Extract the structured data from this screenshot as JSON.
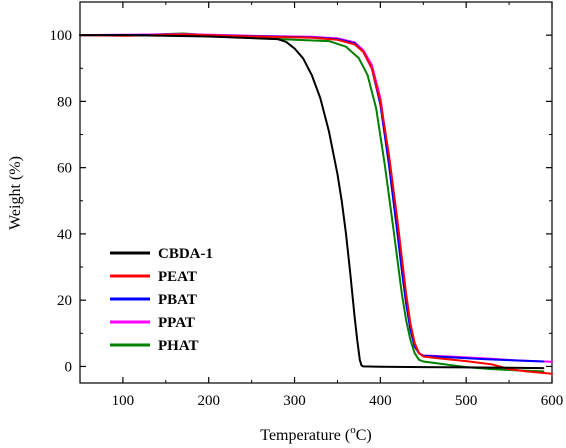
{
  "chart_data": {
    "type": "line",
    "title": "",
    "xlabel": "Temperature (",
    "xlabel_unit_sup": "o",
    "xlabel_unit": "C)",
    "ylabel": "Weight (%)",
    "xlim": [
      50,
      600
    ],
    "ylim": [
      -5,
      110
    ],
    "x_ticks": [
      100,
      200,
      300,
      400,
      500,
      600
    ],
    "y_ticks": [
      0,
      20,
      40,
      60,
      80,
      100
    ],
    "x_tick_labels": [
      "100",
      "200",
      "300",
      "400",
      "500",
      "600"
    ],
    "y_tick_labels": [
      "0",
      "20",
      "40",
      "60",
      "80",
      "100"
    ],
    "grid": false,
    "legend_position": "bottom-left",
    "series": [
      {
        "name": "CBDA-1",
        "color": "#000000",
        "x": [
          50,
          100,
          200,
          280,
          290,
          300,
          310,
          320,
          330,
          340,
          350,
          355,
          360,
          365,
          370,
          373,
          376,
          378,
          380,
          400,
          450,
          500,
          550,
          590
        ],
        "y": [
          100,
          100,
          99.6,
          98.8,
          98,
          96,
          93,
          88,
          81,
          71,
          58,
          50,
          40,
          28,
          15,
          8,
          2,
          0.3,
          0,
          -0.1,
          -0.2,
          -0.3,
          -0.4,
          -0.5
        ]
      },
      {
        "name": "PEAT",
        "color": "#ff0000",
        "x": [
          50,
          100,
          170,
          250,
          320,
          350,
          370,
          380,
          390,
          400,
          410,
          420,
          425,
          430,
          435,
          440,
          445,
          450,
          470,
          500,
          530,
          550,
          570,
          600
        ],
        "y": [
          100,
          99.8,
          100.2,
          99.6,
          99.2,
          98.6,
          97.2,
          95,
          90,
          80,
          64,
          44,
          33,
          22,
          13,
          7,
          4,
          3,
          2.4,
          1.6,
          0.6,
          -0.8,
          -1.5,
          -2.2
        ]
      },
      {
        "name": "PBAT",
        "color": "#0000ff",
        "x": [
          50,
          100,
          170,
          250,
          320,
          350,
          370,
          380,
          390,
          400,
          410,
          420,
          425,
          430,
          435,
          440,
          445,
          450,
          480,
          520,
          560,
          590
        ],
        "y": [
          100,
          100,
          100.1,
          99.7,
          99.3,
          98.8,
          97.5,
          95,
          90,
          79,
          61,
          40,
          29,
          19,
          11,
          6,
          4,
          3.2,
          2.8,
          2.2,
          1.8,
          1.5
        ]
      },
      {
        "name": "PPAT",
        "color": "#ff00ff",
        "x": [
          50,
          100,
          170,
          250,
          320,
          350,
          370,
          380,
          390,
          400,
          410,
          420,
          425,
          430,
          435,
          440,
          445,
          450,
          480,
          520,
          560,
          600
        ],
        "y": [
          100,
          100.1,
          100.3,
          99.8,
          99.5,
          99,
          97.8,
          95.5,
          91,
          81,
          63,
          42,
          31,
          20,
          12,
          6.5,
          4,
          3.3,
          3,
          2.5,
          1.8,
          1.4
        ]
      },
      {
        "name": "PHAT",
        "color": "#008000",
        "x": [
          50,
          100,
          170,
          250,
          300,
          340,
          360,
          375,
          385,
          395,
          405,
          415,
          420,
          425,
          430,
          435,
          440,
          445,
          450,
          470,
          500,
          530,
          560,
          590
        ],
        "y": [
          100,
          99.9,
          100.5,
          99.2,
          98.6,
          98.2,
          96.5,
          93,
          88,
          78,
          61,
          42,
          32,
          22,
          14,
          8,
          4,
          2,
          1.5,
          0.8,
          -0.2,
          -0.8,
          -1.2,
          -1.5
        ]
      }
    ]
  }
}
